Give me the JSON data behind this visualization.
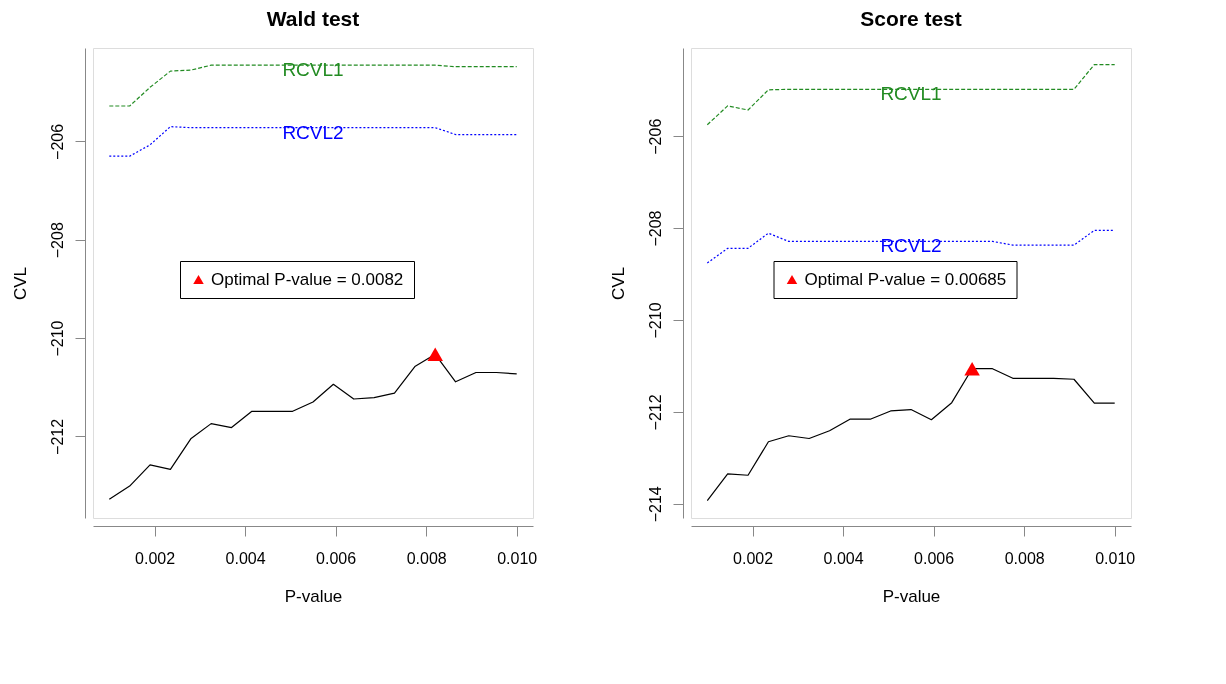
{
  "chart_data": [
    {
      "type": "line",
      "title": "Wald test",
      "xlabel": "P-value",
      "ylabel": "CVL",
      "x": [
        0.001,
        0.00145,
        0.0019,
        0.00235,
        0.0028,
        0.00325,
        0.0037,
        0.00415,
        0.0046,
        0.00505,
        0.0055,
        0.00595,
        0.0064,
        0.00685,
        0.0073,
        0.00775,
        0.0082,
        0.00865,
        0.0091,
        0.00955,
        0.01
      ],
      "xlim": [
        0.00064,
        0.01036
      ],
      "xticks": [
        0.002,
        0.004,
        0.006,
        0.008,
        {
          "value": 0.01,
          "label": "0.010"
        }
      ],
      "ylim": [
        -213.66,
        -204.1
      ],
      "yticks": [
        -206,
        -208,
        -210,
        -212
      ],
      "grid": false,
      "legend": "center",
      "series": [
        {
          "color": "#000000",
          "line_style": "solid",
          "values": [
            -213.28,
            -213.01,
            -212.58,
            -212.67,
            -212.05,
            -211.74,
            -211.82,
            -211.49,
            -211.49,
            -211.49,
            -211.3,
            -210.94,
            -211.24,
            -211.21,
            -211.12,
            -210.58,
            -210.33,
            -210.89,
            -210.7,
            -210.7,
            -210.73
          ]
        },
        {
          "name": "RCVL1",
          "color": "#228b22",
          "line_style": "dashed",
          "values": [
            -205.28,
            -205.28,
            -204.9,
            -204.57,
            -204.55,
            -204.45,
            -204.45,
            -204.45,
            -204.45,
            -204.45,
            -204.45,
            -204.45,
            -204.45,
            -204.45,
            -204.45,
            -204.45,
            -204.45,
            -204.48,
            -204.48,
            -204.48,
            -204.48
          ]
        },
        {
          "name": "RCVL2",
          "color": "#0000ff",
          "line_style": "dotted",
          "values": [
            -206.3,
            -206.3,
            -206.07,
            -205.7,
            -205.72,
            -205.72,
            -205.72,
            -205.72,
            -205.72,
            -205.72,
            -205.72,
            -205.72,
            -205.72,
            -205.72,
            -205.72,
            -205.72,
            -205.72,
            -205.86,
            -205.86,
            -205.86,
            -205.86
          ]
        },
        {
          "type": "scatter",
          "name": "Optimal P-value = 0.0082",
          "color": "#ff0000",
          "marker": "triangle",
          "x": [
            0.0082
          ],
          "values": [
            -210.33
          ]
        }
      ]
    },
    {
      "type": "line",
      "title": "Score test",
      "xlabel": "P-value",
      "ylabel": "CVL",
      "x": [
        0.001,
        0.00145,
        0.0019,
        0.00235,
        0.0028,
        0.00325,
        0.0037,
        0.00415,
        0.0046,
        0.00505,
        0.0055,
        0.00595,
        0.0064,
        0.00685,
        0.0073,
        0.00775,
        0.0082,
        0.00865,
        0.0091,
        0.00955,
        0.01
      ],
      "xlim": [
        0.00064,
        0.01036
      ],
      "xticks": [
        0.002,
        0.004,
        0.006,
        0.008,
        {
          "value": 0.01,
          "label": "0.010"
        }
      ],
      "ylim": [
        -214.31,
        -204.08
      ],
      "yticks": [
        -206,
        -208,
        -210,
        -212,
        -214
      ],
      "grid": false,
      "legend": "center",
      "series": [
        {
          "color": "#000000",
          "line_style": "solid",
          "values": [
            -213.93,
            -213.35,
            -213.38,
            -212.65,
            -212.52,
            -212.58,
            -212.41,
            -212.16,
            -212.16,
            -211.98,
            -211.95,
            -212.17,
            -211.8,
            -211.06,
            -211.06,
            -211.27,
            -211.27,
            -211.27,
            -211.29,
            -211.81,
            -211.81
          ]
        },
        {
          "name": "RCVL1",
          "color": "#228b22",
          "line_style": "dashed",
          "values": [
            -205.75,
            -205.34,
            -205.43,
            -204.99,
            -204.98,
            -204.98,
            -204.98,
            -204.98,
            -204.98,
            -204.98,
            -204.98,
            -204.98,
            -204.98,
            -204.98,
            -204.98,
            -204.98,
            -204.98,
            -204.98,
            -204.98,
            -204.44,
            -204.44
          ]
        },
        {
          "name": "RCVL2",
          "color": "#0000ff",
          "line_style": "dotted",
          "values": [
            -208.76,
            -208.44,
            -208.44,
            -208.11,
            -208.29,
            -208.29,
            -208.29,
            -208.29,
            -208.29,
            -208.29,
            -208.29,
            -208.29,
            -208.29,
            -208.29,
            -208.29,
            -208.37,
            -208.37,
            -208.37,
            -208.37,
            -208.05,
            -208.05
          ]
        },
        {
          "type": "scatter",
          "name": "Optimal P-value = 0.00685",
          "color": "#ff0000",
          "marker": "triangle",
          "x": [
            0.00685
          ],
          "values": [
            -211.06
          ]
        }
      ]
    }
  ]
}
